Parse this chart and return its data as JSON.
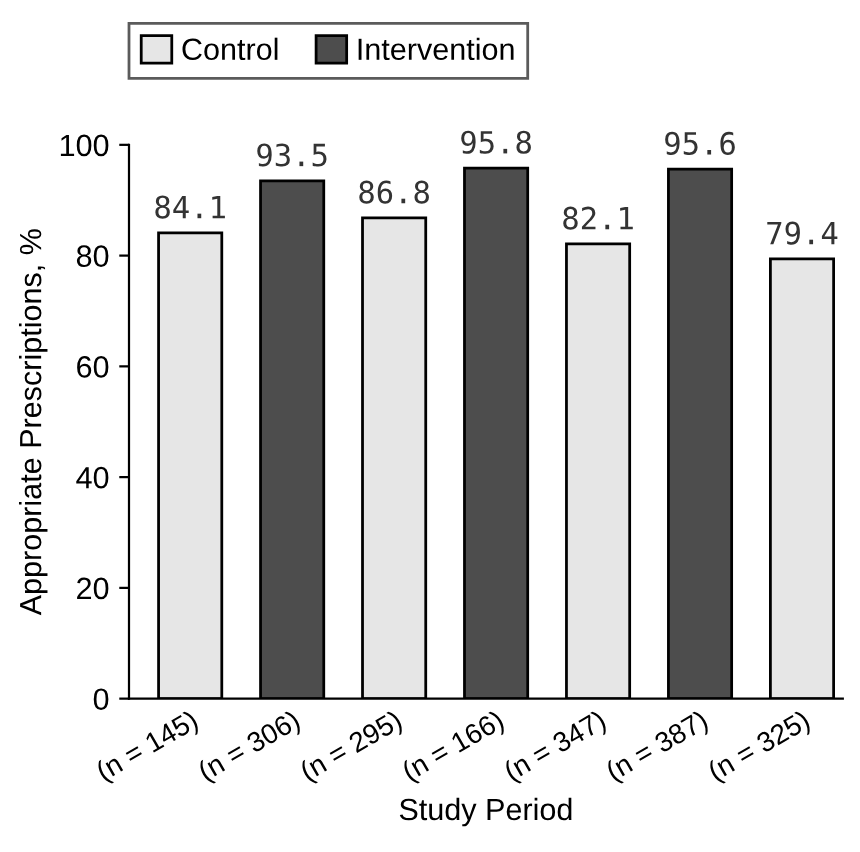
{
  "chart_data": {
    "type": "bar",
    "xlabel": "Study Period",
    "ylabel": "Appropriate Prescriptions, %",
    "categories": [
      "(n = 145)",
      "(n = 306)",
      "(n = 295)",
      "(n = 166)",
      "(n = 347)",
      "(n = 387)",
      "(n = 325)"
    ],
    "series": [
      {
        "name": "Control",
        "color": "#e6e6e6",
        "values": [
          84.1,
          null,
          86.8,
          null,
          82.1,
          null,
          79.4
        ]
      },
      {
        "name": "Intervention",
        "color": "#4d4d4d",
        "values": [
          null,
          93.5,
          null,
          95.8,
          null,
          95.6,
          null
        ]
      }
    ],
    "ylim": [
      0,
      100
    ],
    "yticks": [
      0,
      20,
      40,
      60,
      80,
      100
    ],
    "data_labels": true,
    "legend": "top left",
    "grid": false
  }
}
